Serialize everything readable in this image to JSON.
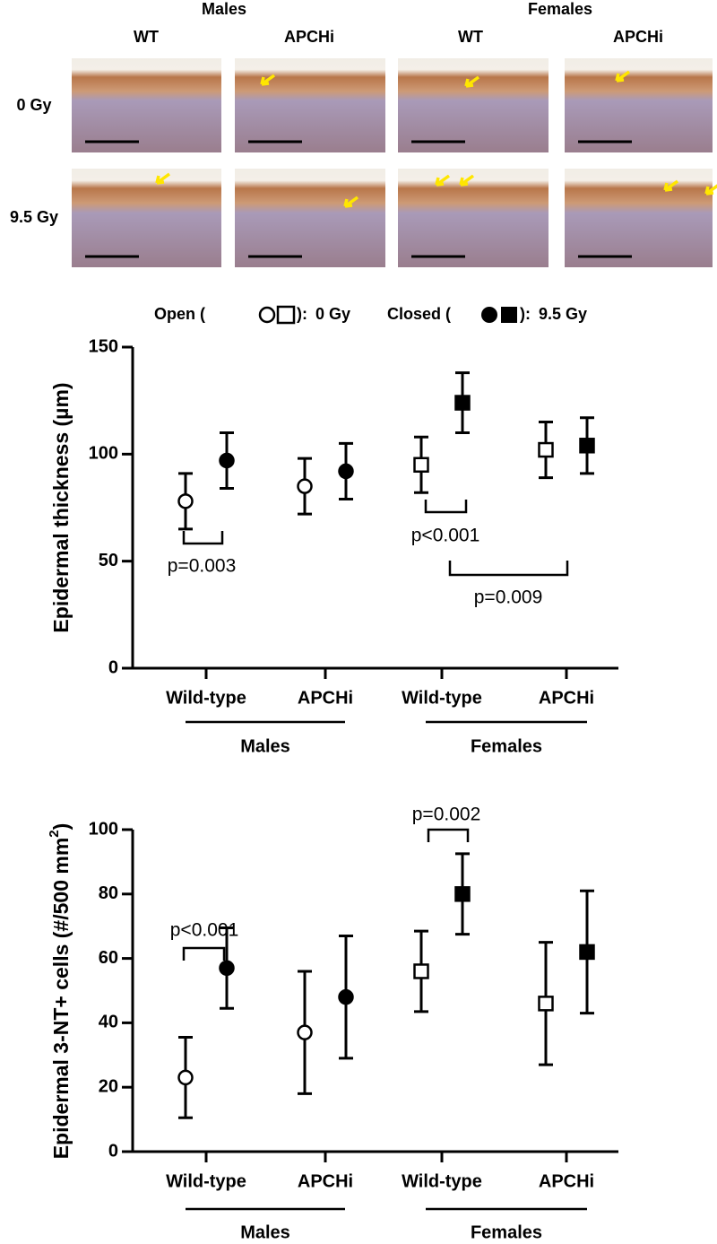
{
  "micrographs": {
    "groups": [
      "Males",
      "Females"
    ],
    "columns": [
      "WT",
      "APCHi",
      "WT",
      "APCHi"
    ],
    "rows": [
      "0 Gy",
      "9.5 Gy"
    ]
  },
  "legend": {
    "open": "Open (",
    "closed": "Closed (",
    "separator": "): "
  },
  "chart_data": [
    {
      "type": "scatter",
      "y_label": "Epidermal thickness (µm)",
      "categories": [
        "Wild-type",
        "APCHi",
        "Wild-type",
        "APCHi"
      ],
      "groups": [
        "Males",
        "Females"
      ],
      "markers": [
        "circle",
        "circle",
        "square",
        "square"
      ],
      "series": [
        {
          "name": "0 Gy",
          "color": "#ffffff",
          "values": [
            78,
            85,
            95,
            102
          ],
          "errors": [
            13,
            13,
            13,
            13
          ]
        },
        {
          "name": "9.5 Gy",
          "color": "#000000",
          "values": [
            97,
            92,
            124,
            104
          ],
          "errors": [
            13,
            13,
            14,
            13
          ]
        }
      ],
      "ylim": [
        0,
        150
      ],
      "yticks": [
        0,
        50,
        100,
        150
      ],
      "annotations": [
        "p=0.003",
        "p<0.001",
        "p=0.009"
      ]
    },
    {
      "type": "scatter",
      "y_label": {
        "text": "Epidermal 3-NT+ cells (#/500 mm",
        "superscript": "2",
        "end": ")"
      },
      "categories": [
        "Wild-type",
        "APCHi",
        "Wild-type",
        "APCHi"
      ],
      "groups": [
        "Males",
        "Females"
      ],
      "markers": [
        "circle",
        "circle",
        "square",
        "square"
      ],
      "series": [
        {
          "name": "0 Gy",
          "color": "#ffffff",
          "values": [
            23,
            37,
            56,
            46
          ],
          "errors": [
            12.5,
            19,
            12.5,
            19
          ]
        },
        {
          "name": "9.5 Gy",
          "color": "#000000",
          "values": [
            57,
            48,
            80,
            62
          ],
          "errors": [
            12.5,
            19,
            12.5,
            19
          ]
        }
      ],
      "ylim": [
        0,
        100
      ],
      "yticks": [
        0,
        20,
        40,
        60,
        80,
        100
      ],
      "annotations": [
        "p<0.001",
        "p=0.002"
      ]
    }
  ]
}
